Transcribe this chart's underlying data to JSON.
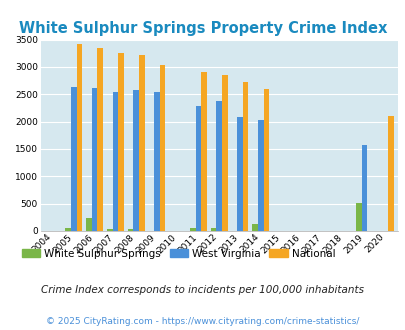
{
  "title": "White Sulphur Springs Property Crime Index",
  "years": [
    "2004",
    "2005",
    "2006",
    "2007",
    "2008",
    "2009",
    "2010",
    "2011",
    "2012",
    "2013",
    "2014",
    "2015",
    "2016",
    "2017",
    "2018",
    "2019",
    "2020"
  ],
  "wss": [
    0,
    60,
    240,
    40,
    40,
    0,
    0,
    50,
    50,
    0,
    130,
    0,
    0,
    0,
    0,
    510,
    0
  ],
  "wv": [
    0,
    2630,
    2620,
    2540,
    2570,
    2540,
    0,
    2280,
    2380,
    2090,
    2030,
    0,
    0,
    0,
    0,
    1570,
    0
  ],
  "nat": [
    0,
    3420,
    3340,
    3260,
    3210,
    3040,
    0,
    2910,
    2860,
    2730,
    2590,
    0,
    0,
    0,
    0,
    0,
    2110
  ],
  "wss_color": "#7ab648",
  "wv_color": "#4a90d9",
  "nat_color": "#f5a623",
  "bg_color": "#d6e8ef",
  "title_color": "#1a8abf",
  "ylim": [
    0,
    3500
  ],
  "yticks": [
    0,
    500,
    1000,
    1500,
    2000,
    2500,
    3000,
    3500
  ],
  "legend_labels": [
    "White Sulphur Springs",
    "West Virginia",
    "National"
  ],
  "footnote1": "Crime Index corresponds to incidents per 100,000 inhabitants",
  "footnote2": "© 2025 CityRating.com - https://www.cityrating.com/crime-statistics/",
  "bar_width": 0.27,
  "footnote1_color": "#222222",
  "footnote2_color": "#4a90d9"
}
